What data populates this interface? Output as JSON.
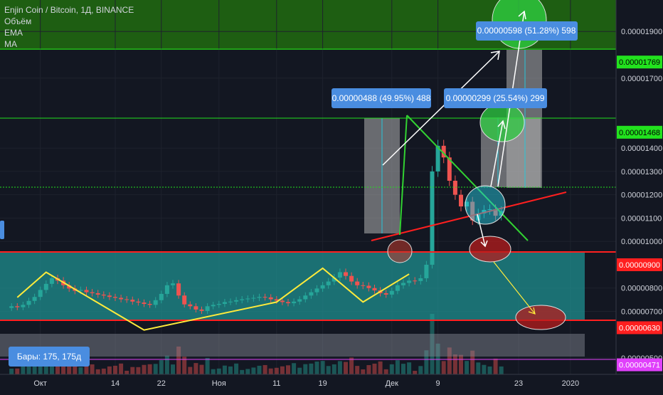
{
  "title": "Enjin Coin / Bitcoin, 1Д, BINANCE",
  "indicators": [
    "Объём",
    "EMA",
    "MA"
  ],
  "bars_label": "Бары: 175, 175д",
  "colors": {
    "background": "#131722",
    "up": "#26a69a",
    "down": "#ef5350",
    "zigzag": "#ffeb3b",
    "range_box": "#1f8f8f",
    "top_zone": "#1e5e12",
    "red_line": "#ff1f1f",
    "green_line": "#22e21e",
    "wedge": "#32d232",
    "info_box": "#4a8de0",
    "magenta": "#e040fb"
  },
  "chart_data": {
    "type": "candlestick",
    "title": "Enjin Coin / Bitcoin, 1Д, BINANCE",
    "ylim": [
      4.3e-06,
      2.035e-05
    ],
    "y_ticks": [
      "0.00001900",
      "0.00001700",
      "0.00001400",
      "0.00001300",
      "0.00001200",
      "0.00001100",
      "0.00001000",
      "0.00000800",
      "0.00000700",
      "0.00000500"
    ],
    "x_ticks": [
      "Окт",
      "14",
      "22",
      "Ноя",
      "11",
      "19",
      "Дек",
      "9",
      "23",
      "2020"
    ],
    "price_labels": [
      {
        "value": "0.00001769",
        "color": "green"
      },
      {
        "value": "0.00001468",
        "color": "green"
      },
      {
        "value": "0.00000900",
        "color": "red"
      },
      {
        "value": "0.00000630",
        "color": "red"
      },
      {
        "value": "0.00000471",
        "color": "magenta"
      }
    ],
    "measurements": [
      {
        "label": "0.00000488 (49.95%) 488"
      },
      {
        "label": "0.00000299 (25.54%) 299"
      },
      {
        "label": "0.00000598 (51.28%) 598"
      }
    ],
    "zigzag": [
      {
        "x": "2019-09-27",
        "y": 7.6e-06
      },
      {
        "x": "2019-10-02",
        "y": 8.68e-06
      },
      {
        "x": "2019-10-19",
        "y": 6.2e-06
      },
      {
        "x": "2019-11-11",
        "y": 7.4e-06
      },
      {
        "x": "2019-11-19",
        "y": 8.85e-06
      },
      {
        "x": "2019-11-26",
        "y": 7.4e-06
      },
      {
        "x": "2019-12-04",
        "y": 8.6e-06
      }
    ],
    "close_series": [
      7.22e-06,
      7.18e-06,
      7.28e-06,
      7.45e-06,
      7.62e-06,
      7.92e-06,
      8.18e-06,
      8.42e-06,
      8.32e-06,
      8.12e-06,
      7.98e-06,
      7.88e-06,
      7.92e-06,
      7.82e-06,
      7.78e-06,
      7.72e-06,
      7.68e-06,
      7.62e-06,
      7.58e-06,
      7.52e-06,
      7.5e-06,
      7.42e-06,
      7.38e-06,
      7.32e-06,
      7.28e-06,
      7.48e-06,
      7.75e-06,
      8.12e-06,
      8.2e-06,
      7.68e-06,
      7.3e-06,
      7.22e-06,
      7.08e-06,
      7.02e-06,
      7.22e-06,
      7.28e-06,
      7.32e-06,
      7.4e-06,
      7.42e-06,
      7.48e-06,
      7.52e-06,
      7.55e-06,
      7.58e-06,
      7.62e-06,
      7.6e-06,
      7.52e-06,
      7.46e-06,
      7.4e-06,
      7.35e-06,
      7.42e-06,
      7.52e-06,
      7.68e-06,
      7.82e-06,
      7.98e-06,
      8.12e-06,
      8.28e-06,
      8.45e-06,
      8.68e-06,
      8.52e-06,
      8.28e-06,
      8.12e-06,
      8.1e-06,
      8e-06,
      7.9e-06,
      7.78e-06,
      7.72e-06,
      7.88e-06,
      8.12e-06,
      8.22e-06,
      8.32e-06,
      8.3e-06,
      8.42e-06,
      9e-06,
      1.3e-05,
      1.41e-05,
      1.36e-05,
      1.26e-05,
      1.2e-05,
      1.15e-05,
      1.17e-05,
      1.09e-05,
      1.12e-05,
      1.135e-05,
      1.138e-05,
      1.11e-05,
      1.13e-05
    ]
  }
}
